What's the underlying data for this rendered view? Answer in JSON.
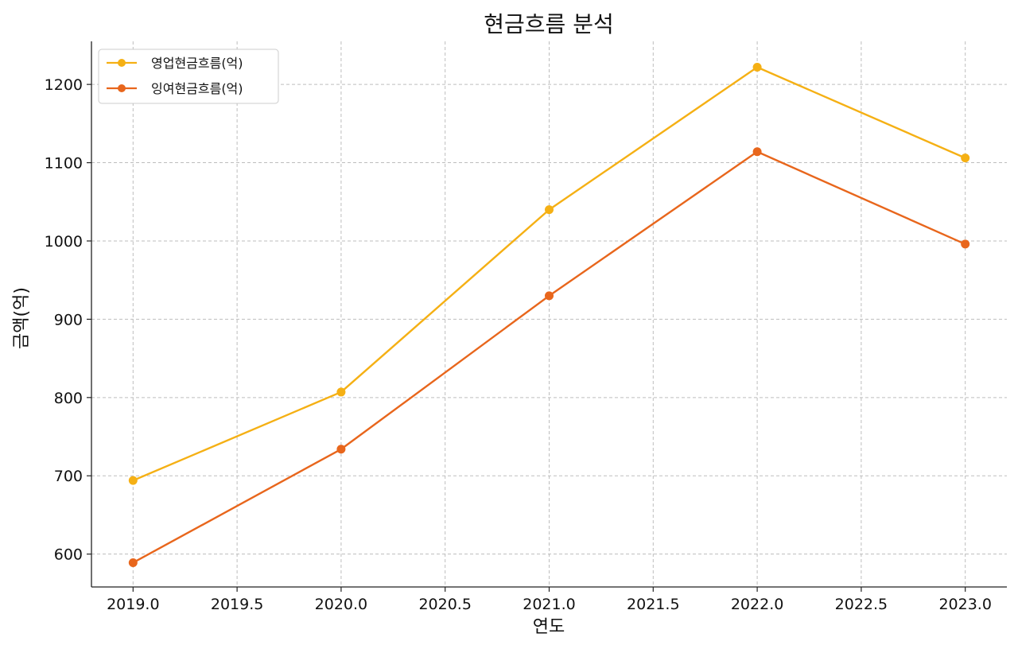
{
  "chart_data": {
    "type": "line",
    "title": "현금흐름 분석",
    "xlabel": "연도",
    "ylabel": "금액(억)",
    "x": [
      2019,
      2020,
      2021,
      2022,
      2023
    ],
    "xlim": [
      2018.8,
      2023.2
    ],
    "ylim": [
      558,
      1255
    ],
    "xticks": [
      2019.0,
      2019.5,
      2020.0,
      2020.5,
      2021.0,
      2021.5,
      2022.0,
      2022.5,
      2023.0
    ],
    "xtick_labels": [
      "2019.0",
      "2019.5",
      "2020.0",
      "2020.5",
      "2021.0",
      "2021.5",
      "2022.0",
      "2022.5",
      "2023.0"
    ],
    "yticks": [
      600,
      700,
      800,
      900,
      1000,
      1100,
      1200
    ],
    "ytick_labels": [
      "600",
      "700",
      "800",
      "900",
      "1000",
      "1100",
      "1200"
    ],
    "grid": true,
    "legend_position": "top-left",
    "series": [
      {
        "name": "영업현금흐름(억)",
        "color": "#F5B014",
        "values": [
          694,
          807,
          1040,
          1222,
          1106
        ]
      },
      {
        "name": "잉여현금흐름(억)",
        "color": "#E8661C",
        "values": [
          589,
          734,
          930,
          1114,
          996
        ]
      }
    ]
  }
}
